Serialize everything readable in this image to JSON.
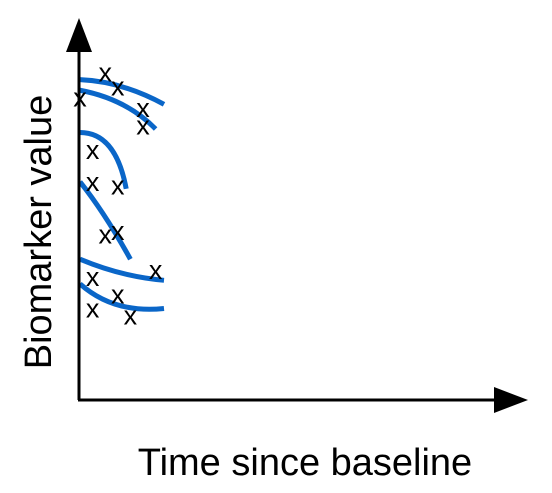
{
  "chart_data": {
    "type": "line",
    "xlabel": "Time since baseline",
    "ylabel": "Biomarker value",
    "xlim": [
      0,
      100
    ],
    "ylim": [
      0,
      100
    ],
    "grid": false,
    "axis_ticks": false,
    "marker_glyph": "x",
    "curve_color": "#0a66c8",
    "axis_color": "#000000",
    "series": [
      {
        "curve": [
          [
            0,
            91
          ],
          [
            10,
            89
          ],
          [
            20,
            84
          ]
        ],
        "points": [
          [
            0,
            86
          ],
          [
            6,
            93
          ],
          [
            9,
            89
          ],
          [
            15,
            83
          ],
          [
            15,
            78
          ]
        ]
      },
      {
        "curve": [
          [
            0,
            88
          ],
          [
            10,
            84
          ],
          [
            18,
            77
          ]
        ],
        "points": []
      },
      {
        "curve": [
          [
            0,
            76
          ],
          [
            7,
            72
          ],
          [
            11,
            60
          ]
        ],
        "points": [
          [
            3,
            71
          ],
          [
            3,
            62
          ],
          [
            9,
            61
          ]
        ]
      },
      {
        "curve": [
          [
            0,
            62
          ],
          [
            6,
            52
          ],
          [
            12,
            40
          ]
        ],
        "points": [
          [
            6,
            47
          ],
          [
            9,
            48
          ]
        ]
      },
      {
        "curve": [
          [
            0,
            40
          ],
          [
            10,
            36
          ],
          [
            20,
            34
          ]
        ],
        "points": [
          [
            3,
            35
          ],
          [
            18,
            37
          ]
        ]
      },
      {
        "curve": [
          [
            0,
            33
          ],
          [
            9,
            27
          ],
          [
            20,
            26
          ]
        ],
        "points": [
          [
            3,
            26
          ],
          [
            9,
            30
          ],
          [
            12,
            24
          ]
        ]
      }
    ]
  }
}
